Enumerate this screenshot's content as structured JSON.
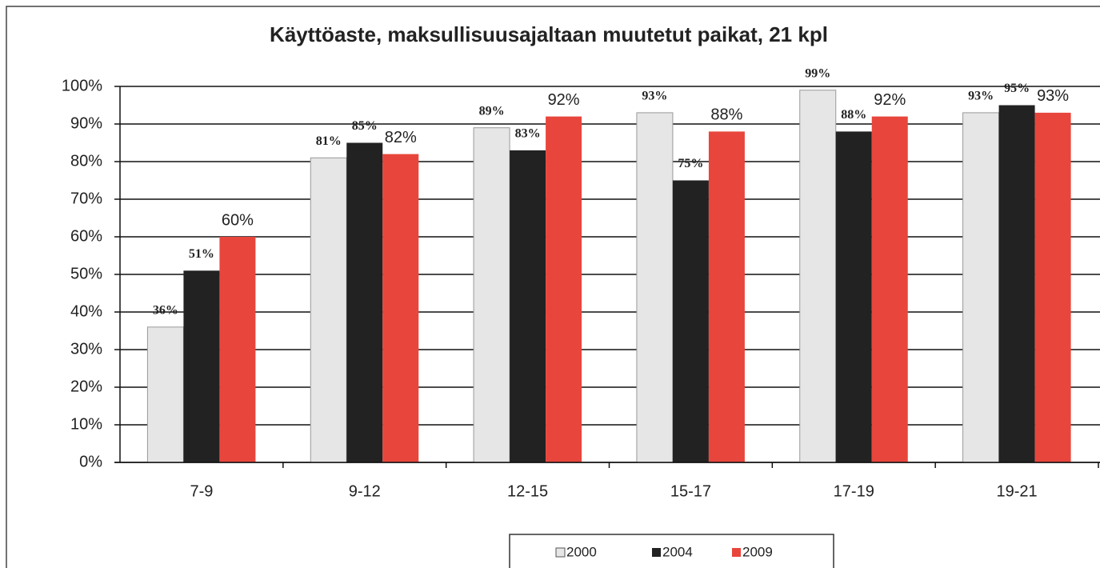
{
  "chart_data": {
    "type": "bar",
    "title": "Käyttöaste, maksullisuusajaltaan muutetut paikat, 21 kpl",
    "categories": [
      "7-9",
      "9-12",
      "12-15",
      "15-17",
      "17-19",
      "19-21"
    ],
    "series": [
      {
        "name": "2000",
        "color": "#e6e6e6",
        "values": [
          36,
          81,
          89,
          93,
          99,
          93
        ],
        "value_labels": [
          "36%",
          "81%",
          "89%",
          "93%",
          "99%",
          "93%"
        ]
      },
      {
        "name": "2004",
        "color": "#222222",
        "values": [
          51,
          85,
          83,
          75,
          88,
          95
        ],
        "value_labels": [
          "51%",
          "85%",
          "83%",
          "75%",
          "88%",
          "95%"
        ]
      },
      {
        "name": "2009",
        "color": "#e8463c",
        "values": [
          60,
          82,
          92,
          88,
          92,
          93
        ],
        "value_labels": [
          "60%",
          "82%",
          "92%",
          "88%",
          "92%",
          "93%"
        ]
      }
    ],
    "ylim": [
      0,
      100
    ],
    "yticks": [
      {
        "value": 0,
        "label": "0%"
      },
      {
        "value": 10,
        "label": "10%"
      },
      {
        "value": 20,
        "label": "20%"
      },
      {
        "value": 30,
        "label": "30%"
      },
      {
        "value": 40,
        "label": "40%"
      },
      {
        "value": 50,
        "label": "50%"
      },
      {
        "value": 60,
        "label": "60%"
      },
      {
        "value": 70,
        "label": "70%"
      },
      {
        "value": 80,
        "label": "80%"
      },
      {
        "value": 90,
        "label": "90%"
      },
      {
        "value": 100,
        "label": "100%"
      }
    ],
    "grid": true,
    "legend": "bottom"
  }
}
